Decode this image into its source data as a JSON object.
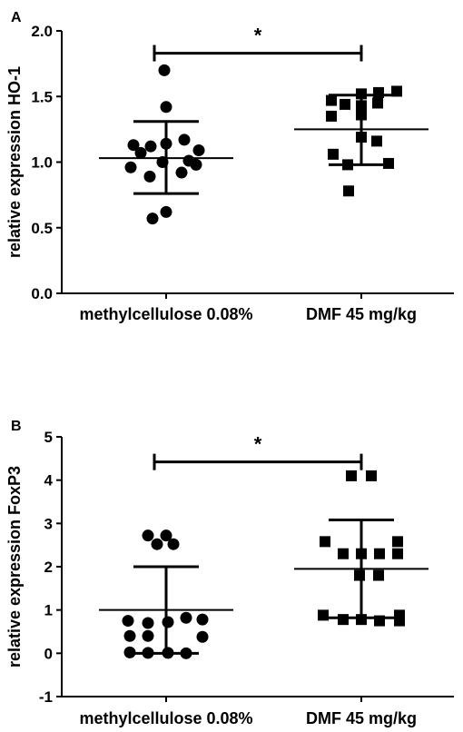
{
  "chart_data": [
    {
      "type": "scatter",
      "panel_label": "A",
      "ylabel": "relative expression HO-1",
      "categories": [
        "methylcellulose 0.08%",
        "DMF 45 mg/kg"
      ],
      "yticks": [
        "0.0",
        "0.5",
        "1.0",
        "1.5",
        "2.0"
      ],
      "ylim": [
        0,
        2.0
      ],
      "series": [
        {
          "marker": "circle",
          "mean": 1.03,
          "sd_low": 0.76,
          "sd_high": 1.31,
          "values": [
            1.7,
            1.42,
            1.13,
            1.12,
            1.17,
            1.09,
            1.07,
            1.14,
            1.0,
            1.01,
            0.98,
            0.96,
            0.89,
            0.92,
            0.62,
            0.57
          ]
        },
        {
          "marker": "square",
          "mean": 1.25,
          "sd_low": 0.98,
          "sd_high": 1.51,
          "values": [
            1.52,
            1.53,
            1.54,
            1.47,
            1.44,
            1.43,
            1.45,
            1.35,
            1.36,
            1.19,
            1.16,
            1.06,
            0.98,
            0.99,
            0.78
          ]
        }
      ],
      "significance": {
        "label": "*",
        "y": 1.83
      }
    },
    {
      "type": "scatter",
      "panel_label": "B",
      "ylabel": "relative expression FoxP3",
      "categories": [
        "methylcellulose 0.08%",
        "DMF 45 mg/kg"
      ],
      "yticks": [
        "-1",
        "0",
        "1",
        "2",
        "3",
        "4",
        "5"
      ],
      "ylim": [
        -1,
        5
      ],
      "series": [
        {
          "marker": "circle",
          "mean": 1.0,
          "sd_low": 0.0,
          "sd_high": 2.0,
          "values": [
            2.72,
            2.72,
            2.52,
            2.52,
            0.82,
            0.78,
            0.75,
            0.72,
            0.7,
            0.4,
            0.4,
            0.38,
            0.02,
            0.01,
            0.01,
            0.0
          ]
        },
        {
          "marker": "square",
          "mean": 1.95,
          "sd_low": 0.82,
          "sd_high": 3.08,
          "values": [
            4.1,
            4.1,
            2.58,
            2.58,
            2.3,
            2.3,
            2.3,
            2.3,
            1.8,
            1.8,
            0.88,
            0.88,
            0.78,
            0.78,
            0.75,
            0.75
          ]
        }
      ],
      "significance": {
        "label": "*",
        "y": 4.42
      }
    }
  ]
}
